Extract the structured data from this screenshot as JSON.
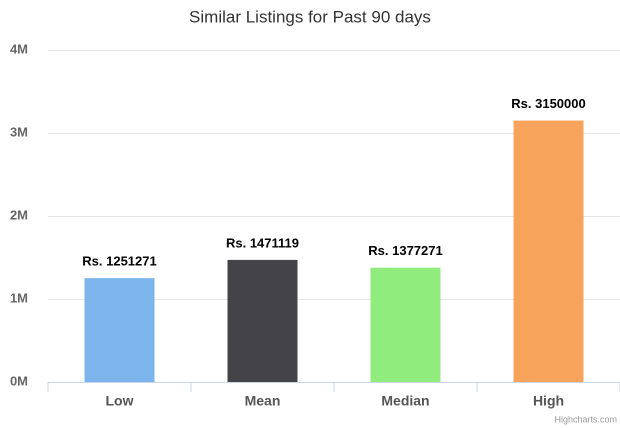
{
  "chart_data": {
    "type": "bar",
    "title": "Similar Listings for Past 90 days",
    "categories": [
      "Low",
      "Mean",
      "Median",
      "High"
    ],
    "values": [
      1251271,
      1471119,
      1377271,
      3150000
    ],
    "value_labels": [
      "Rs. 1251271",
      "Rs. 1471119",
      "Rs. 1377271",
      "Rs. 3150000"
    ],
    "colors": [
      "#7cb5ec",
      "#434348",
      "#90ed7d",
      "#f7a35c"
    ],
    "ylim": [
      0,
      4000000
    ],
    "yticks": [
      {
        "value": 0,
        "label": "0M"
      },
      {
        "value": 1000000,
        "label": "1M"
      },
      {
        "value": 2000000,
        "label": "2M"
      },
      {
        "value": 3000000,
        "label": "3M"
      },
      {
        "value": 4000000,
        "label": "4M"
      }
    ],
    "grid": true,
    "credits": "Highcharts.com"
  }
}
